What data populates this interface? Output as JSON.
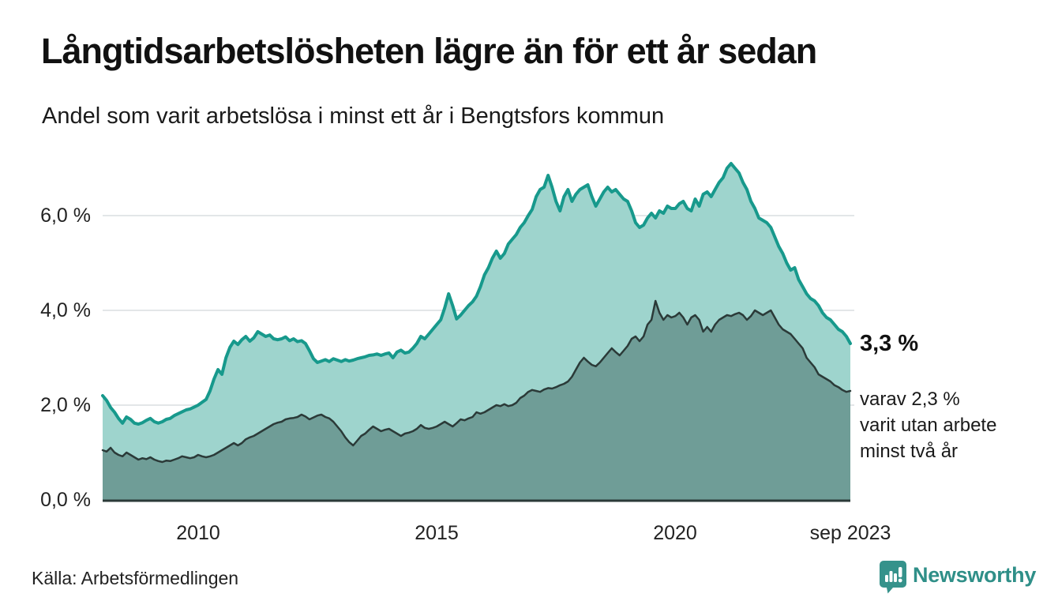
{
  "header": {
    "title": "Långtidsarbetslösheten lägre än för ett år sedan",
    "subtitle": "Andel som varit arbetslösa i minst ett år i Bengtsfors kommun"
  },
  "chart_data": {
    "type": "area",
    "title": "Långtidsarbetslösheten lägre än för ett år sedan",
    "subtitle": "Andel som varit arbetslösa i minst ett år i Bengtsfors kommun",
    "unit": "%",
    "frequency": "monthly",
    "x_start": "2008-01",
    "x_end": "2023-09",
    "ylim": [
      0,
      7.3
    ],
    "grid": "horizontal",
    "y_ticks": [
      "6,0 %",
      "4,0 %",
      "2,0 %",
      "0,0 %"
    ],
    "y_tick_values": [
      6,
      4,
      2,
      0
    ],
    "x_ticks": [
      "2010",
      "2015",
      "2020",
      "sep 2023"
    ],
    "x_tick_years": [
      2010,
      2015,
      2020,
      2023.6667
    ],
    "series": [
      {
        "name": "Andel arbetslösa minst ett år",
        "line_color": "#17998c",
        "fill_color": "#9ed4cd",
        "end_value": 3.3,
        "values": [
          2.2,
          2.1,
          1.95,
          1.85,
          1.72,
          1.62,
          1.75,
          1.7,
          1.62,
          1.6,
          1.63,
          1.68,
          1.72,
          1.65,
          1.62,
          1.65,
          1.7,
          1.72,
          1.78,
          1.82,
          1.86,
          1.9,
          1.92,
          1.96,
          2.0,
          2.06,
          2.12,
          2.3,
          2.55,
          2.75,
          2.65,
          3.0,
          3.22,
          3.35,
          3.28,
          3.38,
          3.45,
          3.35,
          3.42,
          3.55,
          3.5,
          3.45,
          3.48,
          3.4,
          3.38,
          3.4,
          3.44,
          3.36,
          3.4,
          3.34,
          3.36,
          3.3,
          3.15,
          2.98,
          2.9,
          2.93,
          2.96,
          2.92,
          2.98,
          2.95,
          2.92,
          2.96,
          2.93,
          2.95,
          2.98,
          3.0,
          3.02,
          3.05,
          3.06,
          3.08,
          3.05,
          3.08,
          3.1,
          3.0,
          3.12,
          3.16,
          3.1,
          3.12,
          3.2,
          3.3,
          3.45,
          3.4,
          3.5,
          3.6,
          3.7,
          3.8,
          4.05,
          4.35,
          4.1,
          3.82,
          3.9,
          4.0,
          4.1,
          4.18,
          4.3,
          4.5,
          4.75,
          4.9,
          5.1,
          5.25,
          5.1,
          5.2,
          5.4,
          5.5,
          5.6,
          5.75,
          5.85,
          6.0,
          6.13,
          6.4,
          6.55,
          6.6,
          6.85,
          6.6,
          6.3,
          6.1,
          6.4,
          6.55,
          6.3,
          6.45,
          6.55,
          6.6,
          6.65,
          6.4,
          6.2,
          6.35,
          6.5,
          6.6,
          6.5,
          6.55,
          6.45,
          6.35,
          6.3,
          6.1,
          5.85,
          5.75,
          5.8,
          5.95,
          6.05,
          5.95,
          6.1,
          6.05,
          6.2,
          6.15,
          6.15,
          6.25,
          6.3,
          6.15,
          6.1,
          6.35,
          6.2,
          6.45,
          6.5,
          6.4,
          6.55,
          6.7,
          6.8,
          7.0,
          7.1,
          7.0,
          6.9,
          6.7,
          6.55,
          6.3,
          6.15,
          5.95,
          5.9,
          5.85,
          5.75,
          5.55,
          5.35,
          5.2,
          5.0,
          4.85,
          4.9,
          4.65,
          4.5,
          4.35,
          4.25,
          4.2,
          4.1,
          3.95,
          3.85,
          3.8,
          3.7,
          3.6,
          3.55,
          3.45,
          3.3
        ]
      },
      {
        "name": "Andel arbetslösa minst två år",
        "line_color": "#2b3a38",
        "fill_color": "#6f9d97",
        "end_value": 2.3,
        "values": [
          1.05,
          1.02,
          1.1,
          1.0,
          0.95,
          0.92,
          1.0,
          0.95,
          0.9,
          0.85,
          0.88,
          0.86,
          0.9,
          0.85,
          0.82,
          0.8,
          0.83,
          0.82,
          0.85,
          0.88,
          0.92,
          0.9,
          0.88,
          0.9,
          0.95,
          0.92,
          0.9,
          0.92,
          0.95,
          1.0,
          1.05,
          1.1,
          1.15,
          1.2,
          1.15,
          1.2,
          1.28,
          1.32,
          1.35,
          1.4,
          1.45,
          1.5,
          1.55,
          1.6,
          1.63,
          1.65,
          1.7,
          1.72,
          1.73,
          1.75,
          1.8,
          1.76,
          1.7,
          1.74,
          1.78,
          1.8,
          1.75,
          1.72,
          1.65,
          1.55,
          1.45,
          1.32,
          1.22,
          1.15,
          1.25,
          1.35,
          1.4,
          1.48,
          1.55,
          1.5,
          1.45,
          1.48,
          1.5,
          1.45,
          1.4,
          1.35,
          1.4,
          1.42,
          1.45,
          1.5,
          1.58,
          1.52,
          1.5,
          1.52,
          1.55,
          1.6,
          1.65,
          1.6,
          1.55,
          1.62,
          1.7,
          1.68,
          1.72,
          1.75,
          1.85,
          1.82,
          1.85,
          1.9,
          1.95,
          2.0,
          1.98,
          2.02,
          1.98,
          2.0,
          2.05,
          2.15,
          2.2,
          2.28,
          2.32,
          2.3,
          2.28,
          2.33,
          2.36,
          2.35,
          2.38,
          2.42,
          2.45,
          2.5,
          2.6,
          2.75,
          2.9,
          3.0,
          2.92,
          2.85,
          2.82,
          2.9,
          3.0,
          3.1,
          3.2,
          3.12,
          3.05,
          3.15,
          3.25,
          3.4,
          3.45,
          3.35,
          3.45,
          3.7,
          3.8,
          4.2,
          3.95,
          3.8,
          3.9,
          3.85,
          3.88,
          3.95,
          3.85,
          3.7,
          3.85,
          3.9,
          3.8,
          3.55,
          3.65,
          3.55,
          3.7,
          3.8,
          3.85,
          3.9,
          3.88,
          3.92,
          3.95,
          3.9,
          3.8,
          3.88,
          4.0,
          3.95,
          3.9,
          3.95,
          4.0,
          3.85,
          3.7,
          3.6,
          3.55,
          3.5,
          3.4,
          3.3,
          3.2,
          3.0,
          2.9,
          2.8,
          2.65,
          2.6,
          2.55,
          2.5,
          2.42,
          2.38,
          2.32,
          2.28,
          2.3
        ]
      }
    ],
    "annotations": {
      "end_value_label": "3,3 %",
      "sub_line_1": "varav 2,3 %",
      "sub_line_2": "varit utan arbete",
      "sub_line_3": "minst två år"
    },
    "colors": {
      "grid": "#e3e6e8",
      "baseline": "#2b3a38",
      "background": "#ffffff"
    }
  },
  "footer": {
    "source": "Källa: Arbetsförmedlingen",
    "brand": "Newsworthy",
    "brand_color": "#2f8f88"
  }
}
